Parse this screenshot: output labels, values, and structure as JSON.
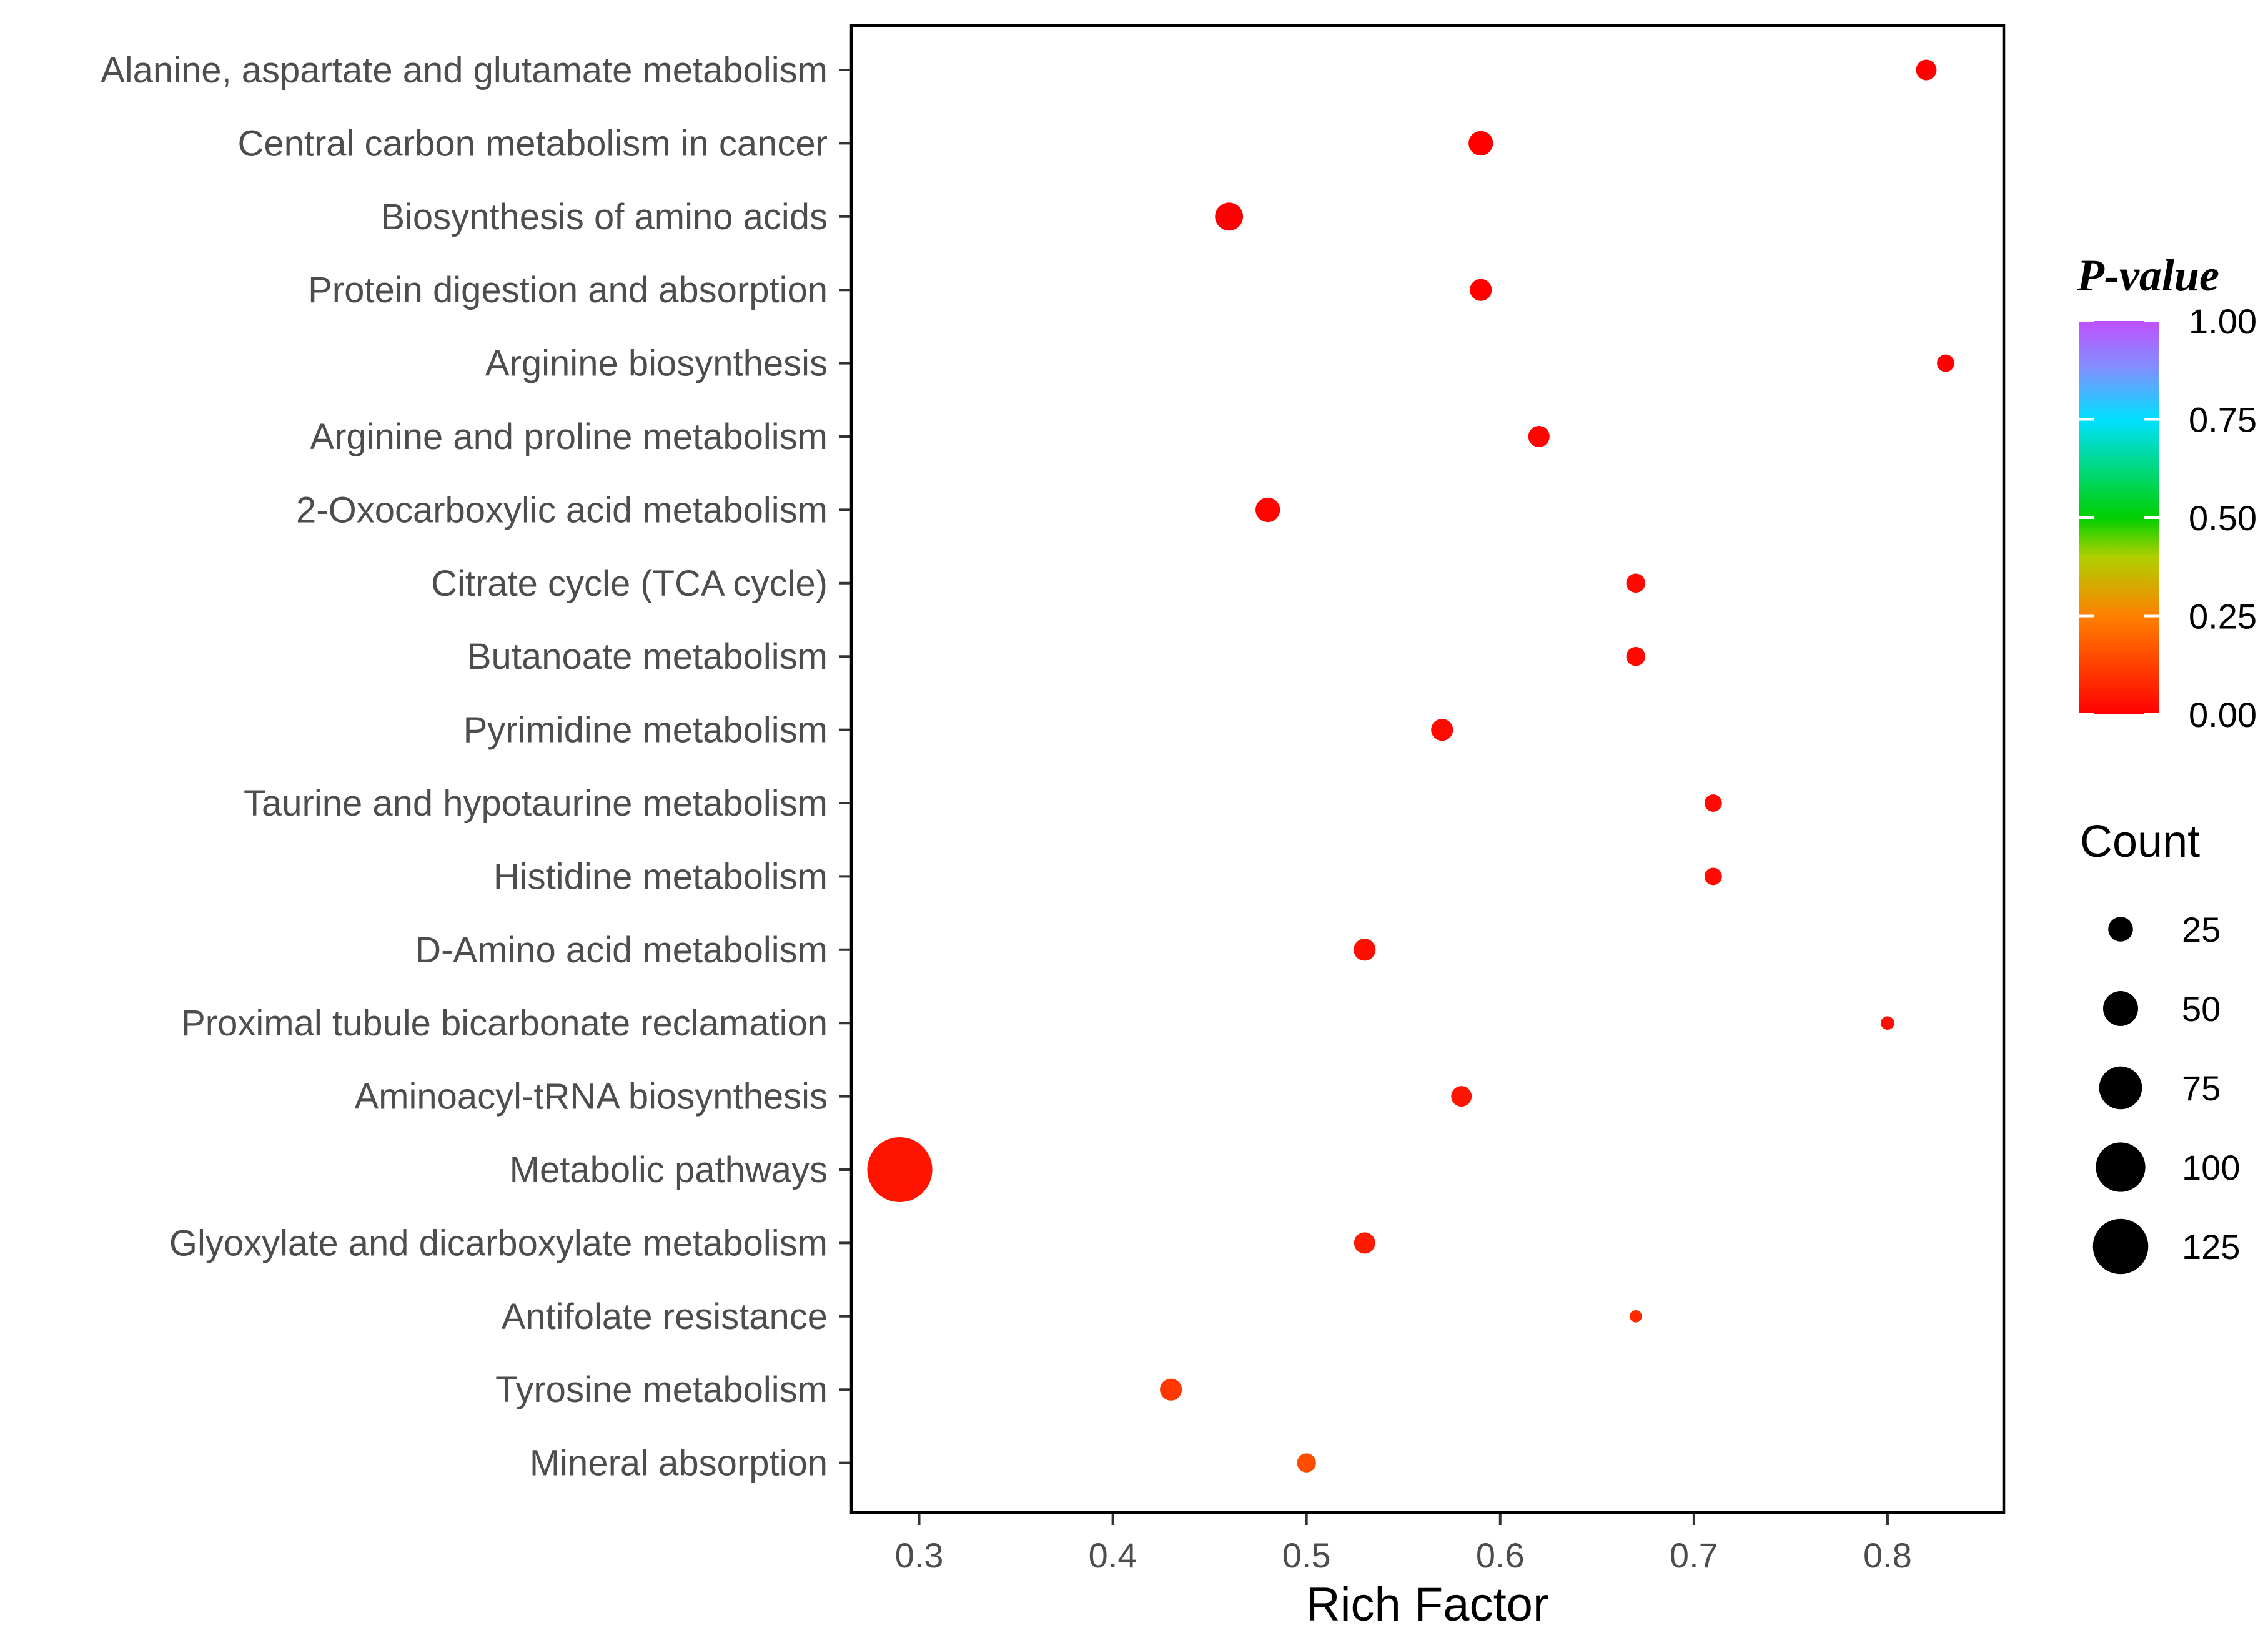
{
  "chart_data": {
    "type": "scatter",
    "title": "",
    "xlabel": "Rich Factor",
    "ylabel": "",
    "xlim": [
      0.265,
      0.86
    ],
    "xticks": [
      0.3,
      0.4,
      0.5,
      0.6,
      0.7,
      0.8
    ],
    "xtick_labels": [
      "0.3",
      "0.4",
      "0.5",
      "0.6",
      "0.7",
      "0.8"
    ],
    "grid": false,
    "categories": [
      "Alanine, aspartate and glutamate metabolism",
      "Central carbon metabolism in cancer",
      "Biosynthesis of amino acids",
      "Protein digestion and absorption",
      "Arginine biosynthesis",
      "Arginine and proline metabolism",
      "2-Oxocarboxylic acid metabolism",
      "Citrate cycle (TCA cycle)",
      "Butanoate metabolism",
      "Pyrimidine metabolism",
      "Taurine and hypotaurine metabolism",
      "Histidine metabolism",
      "D-Amino acid metabolism",
      "Proximal tubule bicarbonate reclamation",
      "Aminoacyl-tRNA biosynthesis",
      "Metabolic pathways",
      "Glyoxylate and dicarboxylate metabolism",
      "Antifolate resistance",
      "Tyrosine metabolism",
      "Mineral absorption"
    ],
    "points": [
      {
        "category": "Alanine, aspartate and glutamate metabolism",
        "rich_factor": 0.82,
        "count": 14,
        "p_value": 0.0
      },
      {
        "category": "Central carbon metabolism in cancer",
        "rich_factor": 0.59,
        "count": 20,
        "p_value": 0.0
      },
      {
        "category": "Biosynthesis of amino acids",
        "rich_factor": 0.46,
        "count": 26,
        "p_value": 0.0
      },
      {
        "category": "Protein digestion and absorption",
        "rich_factor": 0.59,
        "count": 16,
        "p_value": 0.0
      },
      {
        "category": "Arginine biosynthesis",
        "rich_factor": 0.83,
        "count": 10,
        "p_value": 0.0
      },
      {
        "category": "Arginine and proline metabolism",
        "rich_factor": 0.62,
        "count": 15,
        "p_value": 0.01
      },
      {
        "category": "2-Oxocarboxylic acid metabolism",
        "rich_factor": 0.48,
        "count": 20,
        "p_value": 0.01
      },
      {
        "category": "Citrate cycle (TCA cycle)",
        "rich_factor": 0.67,
        "count": 12,
        "p_value": 0.015
      },
      {
        "category": "Butanoate metabolism",
        "rich_factor": 0.67,
        "count": 12,
        "p_value": 0.015
      },
      {
        "category": "Pyrimidine metabolism",
        "rich_factor": 0.57,
        "count": 16,
        "p_value": 0.02
      },
      {
        "category": "Taurine and hypotaurine metabolism",
        "rich_factor": 0.71,
        "count": 10,
        "p_value": 0.02
      },
      {
        "category": "Histidine metabolism",
        "rich_factor": 0.71,
        "count": 10,
        "p_value": 0.02
      },
      {
        "category": "D-Amino acid metabolism",
        "rich_factor": 0.53,
        "count": 16,
        "p_value": 0.03
      },
      {
        "category": "Proximal tubule bicarbonate reclamation",
        "rich_factor": 0.8,
        "count": 6,
        "p_value": 0.03
      },
      {
        "category": "Aminoacyl-tRNA biosynthesis",
        "rich_factor": 0.58,
        "count": 14,
        "p_value": 0.04
      },
      {
        "category": "Metabolic pathways",
        "rich_factor": 0.29,
        "count": 140,
        "p_value": 0.04
      },
      {
        "category": "Glyoxylate and dicarboxylate metabolism",
        "rich_factor": 0.53,
        "count": 15,
        "p_value": 0.05
      },
      {
        "category": "Antifolate resistance",
        "rich_factor": 0.67,
        "count": 5,
        "p_value": 0.08
      },
      {
        "category": "Tyrosine metabolism",
        "rich_factor": 0.43,
        "count": 16,
        "p_value": 0.11
      },
      {
        "category": "Mineral absorption",
        "rich_factor": 0.5,
        "count": 12,
        "p_value": 0.15
      }
    ],
    "legend": {
      "color": {
        "title": "P-value",
        "ticks": [
          1.0,
          0.75,
          0.5,
          0.25,
          0.0
        ],
        "tick_labels": [
          "1.00",
          "0.75",
          "0.50",
          "0.25",
          "0.00"
        ],
        "colors": [
          "#ff0000",
          "#ff8000",
          "#ffc000",
          "#00d000",
          "#00e0ff",
          "#8080ff",
          "#c050ff"
        ],
        "placement": "right"
      },
      "size": {
        "title": "Count",
        "values": [
          25,
          50,
          75,
          100,
          125
        ],
        "labels": [
          "25",
          "50",
          "75",
          "100",
          "125"
        ],
        "placement": "right"
      }
    }
  }
}
